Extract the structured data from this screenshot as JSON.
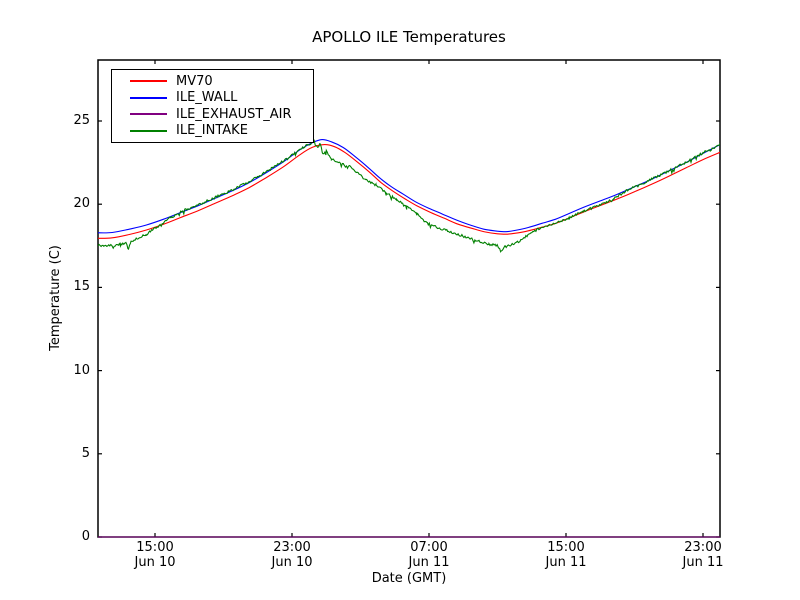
{
  "figure": {
    "background": "#ffffff",
    "frame_color": "#000000"
  },
  "chart_data": {
    "type": "line",
    "title": "APOLLO ILE Temperatures",
    "xlabel": "Date (GMT)",
    "ylabel": "Temperature (C)",
    "ylim": [
      0,
      28.66
    ],
    "xlim_hours_since_jun10_00": [
      11.67,
      48.0
    ],
    "grid": false,
    "legend_position": "upper-left",
    "yticks": [
      0,
      5,
      10,
      15,
      20,
      25
    ],
    "xticks": [
      {
        "hours_since_jun10_00": 15,
        "time": "15:00",
        "date": "Jun 10"
      },
      {
        "hours_since_jun10_00": 23,
        "time": "23:00",
        "date": "Jun 10"
      },
      {
        "hours_since_jun10_00": 31,
        "time": "07:00",
        "date": "Jun 11"
      },
      {
        "hours_since_jun10_00": 39,
        "time": "15:00",
        "date": "Jun 11"
      },
      {
        "hours_since_jun10_00": 47,
        "time": "23:00",
        "date": "Jun 11"
      }
    ],
    "series": [
      {
        "name": "MV70",
        "color": "#ff0000",
        "noise": 0,
        "points": [
          [
            11.67,
            17.95
          ],
          [
            12.5,
            17.98
          ],
          [
            13.5,
            18.18
          ],
          [
            14.5,
            18.45
          ],
          [
            15.5,
            18.8
          ],
          [
            16.5,
            19.2
          ],
          [
            17.5,
            19.6
          ],
          [
            18.5,
            20.05
          ],
          [
            19.5,
            20.5
          ],
          [
            20.5,
            21.0
          ],
          [
            21.5,
            21.6
          ],
          [
            22.5,
            22.25
          ],
          [
            23.5,
            23.0
          ],
          [
            24.2,
            23.42
          ],
          [
            24.9,
            23.58
          ],
          [
            25.5,
            23.45
          ],
          [
            26.1,
            23.1
          ],
          [
            26.8,
            22.55
          ],
          [
            27.5,
            21.95
          ],
          [
            28.2,
            21.3
          ],
          [
            28.9,
            20.78
          ],
          [
            29.6,
            20.32
          ],
          [
            30.3,
            19.9
          ],
          [
            31.1,
            19.5
          ],
          [
            31.9,
            19.15
          ],
          [
            32.7,
            18.8
          ],
          [
            33.5,
            18.55
          ],
          [
            34.3,
            18.33
          ],
          [
            35.0,
            18.22
          ],
          [
            35.5,
            18.2
          ],
          [
            36.0,
            18.25
          ],
          [
            36.8,
            18.4
          ],
          [
            37.6,
            18.62
          ],
          [
            38.4,
            18.85
          ],
          [
            39.2,
            19.18
          ],
          [
            40.0,
            19.52
          ],
          [
            41.0,
            19.92
          ],
          [
            42.0,
            20.32
          ],
          [
            43.0,
            20.75
          ],
          [
            44.0,
            21.2
          ],
          [
            45.0,
            21.68
          ],
          [
            46.0,
            22.18
          ],
          [
            47.0,
            22.68
          ],
          [
            48.0,
            23.12
          ]
        ]
      },
      {
        "name": "ILE_WALL",
        "color": "#0000ff",
        "noise": 0,
        "points": [
          [
            11.67,
            18.28
          ],
          [
            12.5,
            18.3
          ],
          [
            13.5,
            18.5
          ],
          [
            14.5,
            18.75
          ],
          [
            15.5,
            19.1
          ],
          [
            16.5,
            19.5
          ],
          [
            17.5,
            19.9
          ],
          [
            18.5,
            20.35
          ],
          [
            19.5,
            20.8
          ],
          [
            20.5,
            21.3
          ],
          [
            21.5,
            21.9
          ],
          [
            22.5,
            22.55
          ],
          [
            23.5,
            23.3
          ],
          [
            24.2,
            23.7
          ],
          [
            24.75,
            23.88
          ],
          [
            25.3,
            23.75
          ],
          [
            26.0,
            23.4
          ],
          [
            26.7,
            22.85
          ],
          [
            27.4,
            22.25
          ],
          [
            28.1,
            21.6
          ],
          [
            28.8,
            21.05
          ],
          [
            29.5,
            20.6
          ],
          [
            30.2,
            20.15
          ],
          [
            31.0,
            19.75
          ],
          [
            31.8,
            19.4
          ],
          [
            32.6,
            19.05
          ],
          [
            33.4,
            18.75
          ],
          [
            34.2,
            18.5
          ],
          [
            35.0,
            18.38
          ],
          [
            35.5,
            18.35
          ],
          [
            36.0,
            18.42
          ],
          [
            36.8,
            18.6
          ],
          [
            37.6,
            18.85
          ],
          [
            38.4,
            19.1
          ],
          [
            39.2,
            19.45
          ],
          [
            40.0,
            19.8
          ],
          [
            41.0,
            20.2
          ],
          [
            42.0,
            20.6
          ],
          [
            43.0,
            21.05
          ],
          [
            44.0,
            21.5
          ],
          [
            45.0,
            22.0
          ],
          [
            46.0,
            22.5
          ],
          [
            47.0,
            23.05
          ],
          [
            48.0,
            23.58
          ]
        ]
      },
      {
        "name": "ILE_EXHAUST_AIR",
        "color": "#800080",
        "noise": 0,
        "points": [
          [
            11.67,
            0.0
          ],
          [
            48.0,
            0.0
          ]
        ]
      },
      {
        "name": "ILE_INTAKE",
        "color": "#008000",
        "noise": 0.07,
        "points": [
          [
            11.67,
            17.55
          ],
          [
            12.0,
            17.5
          ],
          [
            12.5,
            17.52
          ],
          [
            13.0,
            17.6
          ],
          [
            13.3,
            17.7
          ],
          [
            13.45,
            17.3
          ],
          [
            13.6,
            17.75
          ],
          [
            14.0,
            17.95
          ],
          [
            14.5,
            18.2
          ],
          [
            15.0,
            18.55
          ],
          [
            15.5,
            18.9
          ],
          [
            16.0,
            19.25
          ],
          [
            16.5,
            19.55
          ],
          [
            17.5,
            19.95
          ],
          [
            18.5,
            20.4
          ],
          [
            19.5,
            20.85
          ],
          [
            20.5,
            21.35
          ],
          [
            21.5,
            21.95
          ],
          [
            22.5,
            22.6
          ],
          [
            23.2,
            23.1
          ],
          [
            23.8,
            23.5
          ],
          [
            24.3,
            23.78
          ],
          [
            24.5,
            23.45
          ],
          [
            24.65,
            23.6
          ],
          [
            24.8,
            23.0
          ],
          [
            25.0,
            23.2
          ],
          [
            25.3,
            22.75
          ],
          [
            25.7,
            22.55
          ],
          [
            26.0,
            22.4
          ],
          [
            26.4,
            22.25
          ],
          [
            26.8,
            21.9
          ],
          [
            27.3,
            21.5
          ],
          [
            27.9,
            21.15
          ],
          [
            28.5,
            20.7
          ],
          [
            29.1,
            20.3
          ],
          [
            29.7,
            19.85
          ],
          [
            30.3,
            19.4
          ],
          [
            30.9,
            18.85
          ],
          [
            31.5,
            18.6
          ],
          [
            32.1,
            18.4
          ],
          [
            32.8,
            18.15
          ],
          [
            33.5,
            17.9
          ],
          [
            34.0,
            17.75
          ],
          [
            34.5,
            17.6
          ],
          [
            35.0,
            17.5
          ],
          [
            35.2,
            17.15
          ],
          [
            35.45,
            17.45
          ],
          [
            35.8,
            17.55
          ],
          [
            36.3,
            17.8
          ],
          [
            37.0,
            18.3
          ],
          [
            37.6,
            18.62
          ],
          [
            38.4,
            18.85
          ],
          [
            39.2,
            19.2
          ],
          [
            40.0,
            19.55
          ],
          [
            41.0,
            19.97
          ],
          [
            41.8,
            20.35
          ],
          [
            42.6,
            20.85
          ],
          [
            43.4,
            21.2
          ],
          [
            44.0,
            21.5
          ],
          [
            45.0,
            22.0
          ],
          [
            46.0,
            22.52
          ],
          [
            47.0,
            23.08
          ],
          [
            48.0,
            23.65
          ]
        ]
      }
    ]
  }
}
